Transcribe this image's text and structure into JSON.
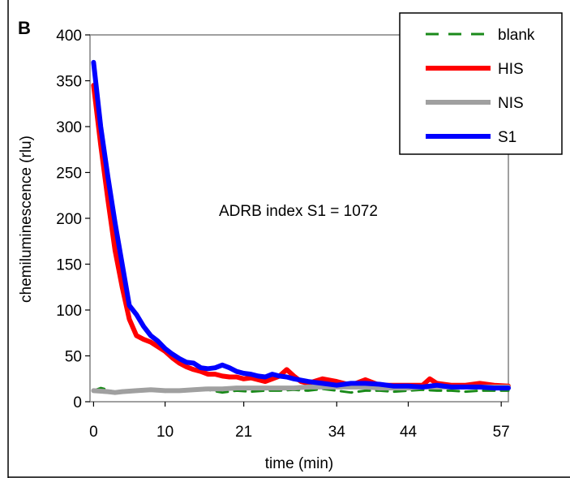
{
  "panel_label": "B",
  "chart_data": {
    "type": "line",
    "title": "",
    "xlabel": "time (min)",
    "ylabel": "chemiluminescence (rlu)",
    "ylim": [
      0,
      400
    ],
    "xlim": [
      -0.5,
      58
    ],
    "y_ticks": [
      0,
      50,
      100,
      150,
      200,
      250,
      300,
      350,
      400
    ],
    "x_ticks": [
      0,
      10,
      21,
      34,
      44,
      57
    ],
    "grid": false,
    "legend_position": "top-right",
    "annotation": "ADRB index S1 = 1072",
    "series": [
      {
        "name": "blank",
        "color": "#1a8a1a",
        "style": "dashed",
        "x": [
          0,
          1,
          2,
          3,
          4,
          6,
          8,
          10,
          12,
          14,
          16,
          18,
          20,
          22,
          24,
          26,
          28,
          30,
          32,
          34,
          36,
          38,
          40,
          42,
          44,
          46,
          48,
          50,
          52,
          54,
          56,
          58
        ],
        "y": [
          12,
          15,
          13,
          10,
          12,
          12,
          13,
          11,
          12,
          12,
          13,
          10,
          12,
          11,
          12,
          12,
          13,
          12,
          14,
          12,
          10,
          12,
          12,
          11,
          12,
          13,
          12,
          12,
          11,
          12,
          12,
          12
        ]
      },
      {
        "name": "HIS",
        "color": "#ff0000",
        "style": "solid",
        "x": [
          0,
          1,
          2,
          3,
          4,
          5,
          6,
          7,
          8,
          9,
          10,
          11,
          12,
          13,
          14,
          15,
          16,
          17,
          18,
          19,
          20,
          21,
          22,
          23,
          24,
          25,
          26,
          27,
          28,
          29,
          30,
          32,
          34,
          36,
          38,
          40,
          42,
          44,
          46,
          47,
          48,
          50,
          52,
          54,
          56,
          58
        ],
        "y": [
          345,
          280,
          220,
          165,
          125,
          90,
          72,
          68,
          65,
          60,
          55,
          48,
          42,
          38,
          35,
          33,
          30,
          30,
          28,
          27,
          27,
          25,
          26,
          24,
          22,
          25,
          28,
          35,
          28,
          22,
          20,
          25,
          22,
          18,
          24,
          18,
          18,
          18,
          18,
          25,
          20,
          18,
          18,
          20,
          18,
          17
        ]
      },
      {
        "name": "NIS",
        "color": "#a0a0a0",
        "style": "solid",
        "x": [
          0,
          2,
          3,
          4,
          6,
          8,
          10,
          12,
          14,
          16,
          18,
          20,
          22,
          24,
          26,
          28,
          30,
          32,
          34,
          36,
          38,
          40,
          42,
          44,
          46,
          48,
          50,
          52,
          54,
          56,
          58
        ],
        "y": [
          12,
          11,
          10,
          11,
          12,
          13,
          12,
          12,
          13,
          14,
          14,
          15,
          15,
          15,
          15,
          15,
          16,
          16,
          16,
          16,
          16,
          15,
          15,
          15,
          16,
          16,
          16,
          16,
          16,
          16,
          16
        ]
      },
      {
        "name": "S1",
        "color": "#0000ff",
        "style": "solid",
        "x": [
          0,
          1,
          2,
          3,
          4,
          5,
          6,
          7,
          8,
          9,
          10,
          11,
          12,
          13,
          14,
          15,
          16,
          17,
          18,
          19,
          20,
          21,
          22,
          23,
          24,
          25,
          26,
          27,
          28,
          30,
          32,
          34,
          36,
          38,
          40,
          42,
          44,
          46,
          48,
          50,
          52,
          54,
          56,
          58
        ],
        "y": [
          370,
          300,
          245,
          195,
          150,
          105,
          95,
          82,
          72,
          66,
          58,
          52,
          47,
          43,
          42,
          37,
          36,
          37,
          40,
          37,
          33,
          31,
          30,
          28,
          27,
          30,
          28,
          27,
          25,
          22,
          20,
          18,
          20,
          20,
          19,
          17,
          17,
          16,
          18,
          16,
          16,
          16,
          15,
          15
        ]
      }
    ]
  }
}
